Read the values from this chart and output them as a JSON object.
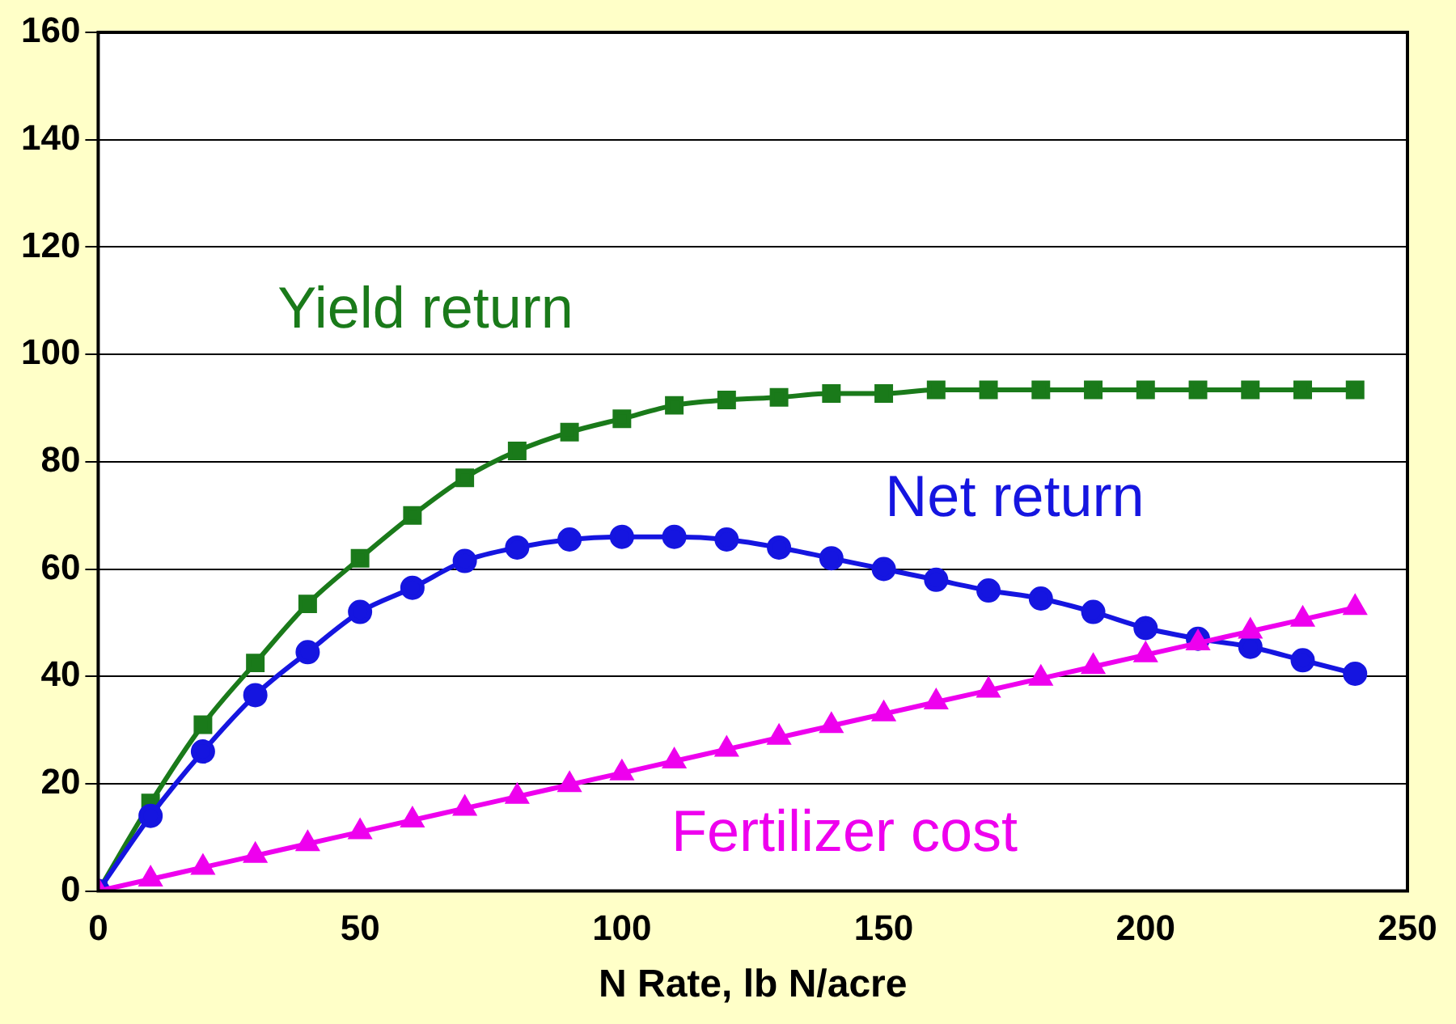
{
  "chart_data": {
    "type": "line",
    "xlabel": "N Rate, lb N/acre",
    "x": [
      0,
      10,
      20,
      30,
      40,
      50,
      60,
      70,
      80,
      90,
      100,
      110,
      120,
      130,
      140,
      150,
      160,
      170,
      180,
      190,
      200,
      210,
      220,
      230,
      240
    ],
    "series": [
      {
        "name": "Yield return",
        "color": "#1a7a1a",
        "marker": "square",
        "values": [
          0,
          16.4,
          31,
          42.5,
          53.5,
          62,
          70,
          77,
          82,
          85.5,
          88,
          90.5,
          91.5,
          92,
          92.7,
          92.7,
          93.4,
          93.4,
          93.4,
          93.4,
          93.4,
          93.4,
          93.4,
          93.4,
          93.4
        ]
      },
      {
        "name": "Net return",
        "color": "#1515e0",
        "marker": "circle",
        "values": [
          0,
          14,
          26,
          36.5,
          44.5,
          52,
          56.5,
          61.5,
          64,
          65.5,
          66,
          66,
          65.5,
          64,
          62,
          60,
          58,
          56,
          54.5,
          52,
          49,
          47,
          45.5,
          43,
          40.5
        ]
      },
      {
        "name": "Fertilizer cost",
        "color": "#ee00ee",
        "marker": "triangle",
        "values": [
          0,
          2.2,
          4.4,
          6.6,
          8.8,
          11,
          13.2,
          15.4,
          17.6,
          19.8,
          22,
          24.2,
          26.4,
          28.6,
          30.8,
          33,
          35.2,
          37.4,
          39.6,
          41.8,
          44,
          46.2,
          48.4,
          50.6,
          52.8
        ]
      }
    ],
    "xlim": [
      0,
      250
    ],
    "xticks": [
      0,
      50,
      100,
      150,
      200,
      250
    ],
    "ylim": [
      0,
      160
    ],
    "yticks": [
      0,
      20,
      40,
      60,
      80,
      100,
      120,
      140,
      160
    ],
    "grid": "y",
    "legend": false,
    "line_style": "solid"
  }
}
